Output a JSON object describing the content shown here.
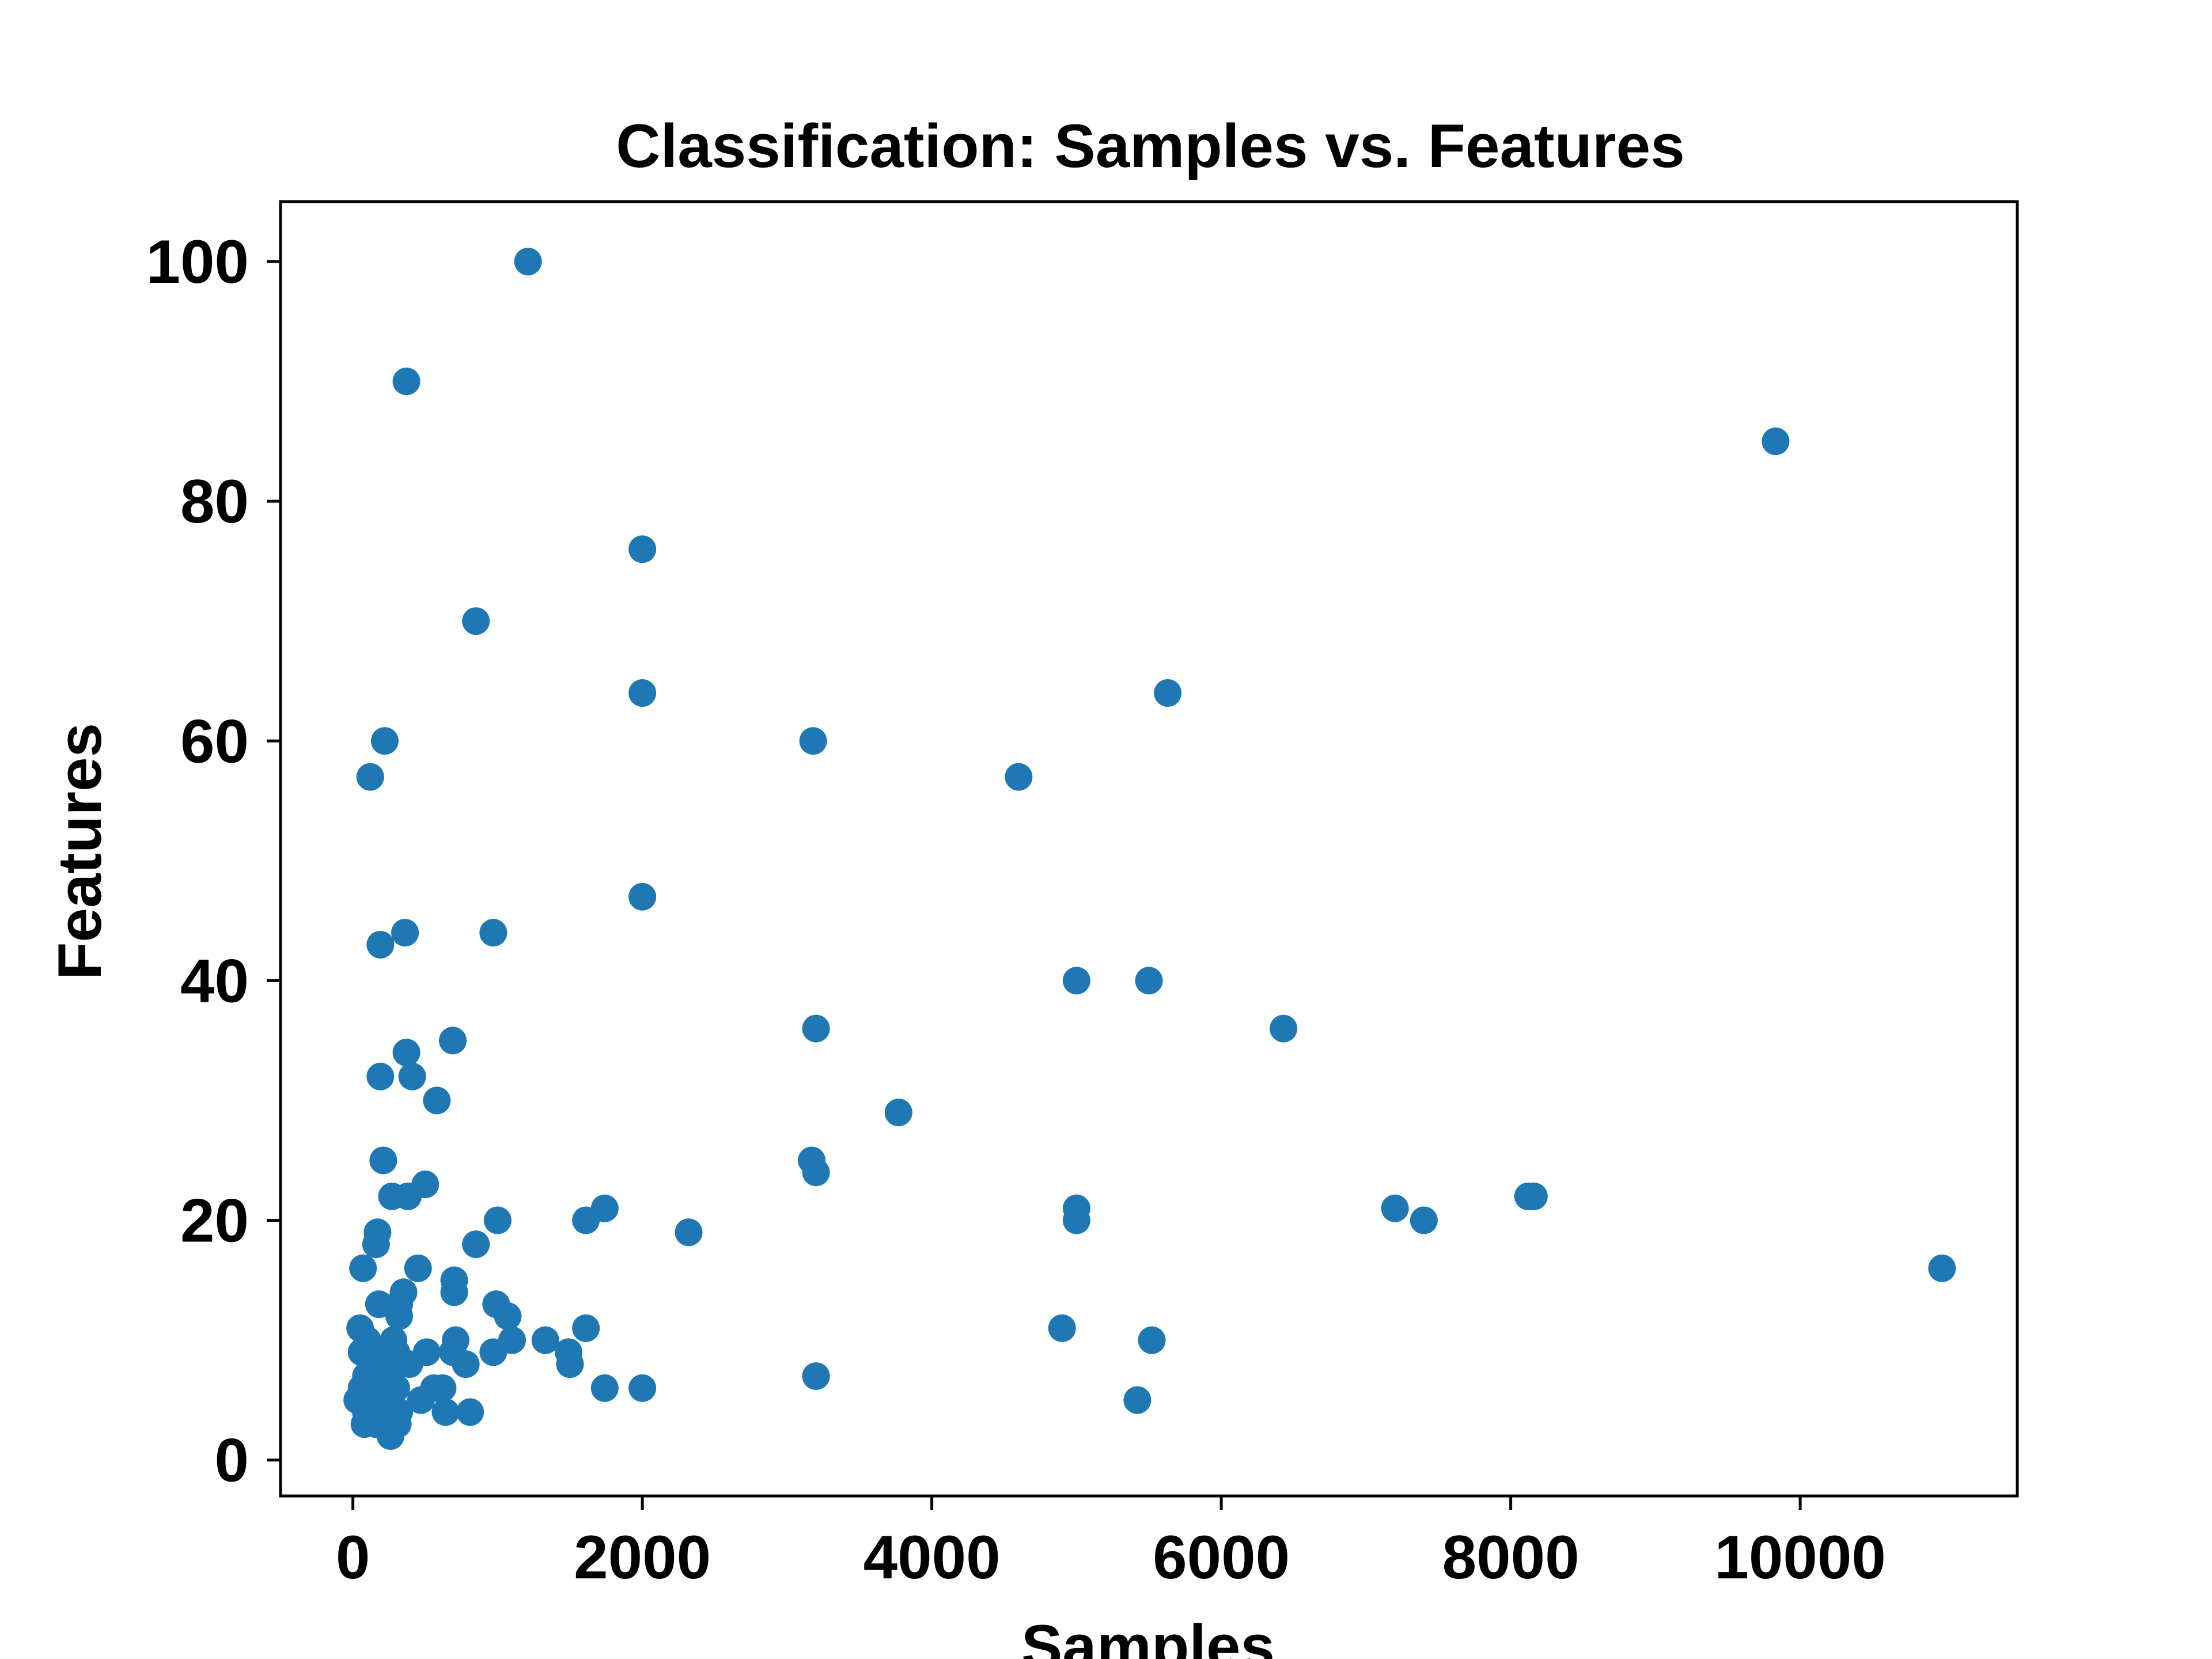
{
  "chart_data": {
    "type": "scatter",
    "title": "Classification: Samples vs. Features",
    "xlabel": "Samples",
    "ylabel": "Features",
    "xlim": [
      -500,
      11500
    ],
    "ylim": [
      -3,
      105
    ],
    "x_ticks": [
      0,
      2000,
      4000,
      6000,
      8000,
      10000
    ],
    "x_tick_labels": [
      "0",
      "2000",
      "4000",
      "6000",
      "8000",
      "10000"
    ],
    "y_ticks": [
      0,
      20,
      40,
      60,
      80,
      100
    ],
    "y_tick_labels": [
      "0",
      "20",
      "40",
      "60",
      "80",
      "100"
    ],
    "grid": false,
    "color": "#1f77b4",
    "points": [
      {
        "x": 1210,
        "y": 100
      },
      {
        "x": 370,
        "y": 90
      },
      {
        "x": 9830,
        "y": 85
      },
      {
        "x": 2000,
        "y": 76
      },
      {
        "x": 850,
        "y": 70
      },
      {
        "x": 2000,
        "y": 64
      },
      {
        "x": 5630,
        "y": 64
      },
      {
        "x": 220,
        "y": 60
      },
      {
        "x": 3180,
        "y": 60
      },
      {
        "x": 120,
        "y": 57
      },
      {
        "x": 4600,
        "y": 57
      },
      {
        "x": 2000,
        "y": 47
      },
      {
        "x": 360,
        "y": 44
      },
      {
        "x": 970,
        "y": 44
      },
      {
        "x": 190,
        "y": 43
      },
      {
        "x": 5000,
        "y": 40
      },
      {
        "x": 5500,
        "y": 40
      },
      {
        "x": 3200,
        "y": 36
      },
      {
        "x": 6430,
        "y": 36
      },
      {
        "x": 690,
        "y": 35
      },
      {
        "x": 370,
        "y": 34
      },
      {
        "x": 190,
        "y": 32
      },
      {
        "x": 410,
        "y": 32
      },
      {
        "x": 580,
        "y": 30
      },
      {
        "x": 3770,
        "y": 29
      },
      {
        "x": 210,
        "y": 25
      },
      {
        "x": 3170,
        "y": 25
      },
      {
        "x": 3200,
        "y": 24
      },
      {
        "x": 500,
        "y": 23
      },
      {
        "x": 270,
        "y": 22
      },
      {
        "x": 380,
        "y": 22
      },
      {
        "x": 8120,
        "y": 22
      },
      {
        "x": 8160,
        "y": 22
      },
      {
        "x": 1740,
        "y": 21
      },
      {
        "x": 5000,
        "y": 21
      },
      {
        "x": 7200,
        "y": 21
      },
      {
        "x": 1000,
        "y": 20
      },
      {
        "x": 1610,
        "y": 20
      },
      {
        "x": 5000,
        "y": 20
      },
      {
        "x": 7400,
        "y": 20
      },
      {
        "x": 170,
        "y": 19
      },
      {
        "x": 2320,
        "y": 19
      },
      {
        "x": 160,
        "y": 18
      },
      {
        "x": 850,
        "y": 18
      },
      {
        "x": 70,
        "y": 16
      },
      {
        "x": 450,
        "y": 16
      },
      {
        "x": 10980,
        "y": 16
      },
      {
        "x": 700,
        "y": 15
      },
      {
        "x": 350,
        "y": 14
      },
      {
        "x": 700,
        "y": 14
      },
      {
        "x": 180,
        "y": 13
      },
      {
        "x": 320,
        "y": 13
      },
      {
        "x": 990,
        "y": 13
      },
      {
        "x": 320,
        "y": 12
      },
      {
        "x": 1070,
        "y": 12
      },
      {
        "x": 50,
        "y": 11
      },
      {
        "x": 1610,
        "y": 11
      },
      {
        "x": 4900,
        "y": 11
      },
      {
        "x": 100,
        "y": 10
      },
      {
        "x": 280,
        "y": 10
      },
      {
        "x": 710,
        "y": 10
      },
      {
        "x": 1100,
        "y": 10
      },
      {
        "x": 1330,
        "y": 10
      },
      {
        "x": 5520,
        "y": 10
      },
      {
        "x": 60,
        "y": 9
      },
      {
        "x": 200,
        "y": 9
      },
      {
        "x": 300,
        "y": 9
      },
      {
        "x": 510,
        "y": 9
      },
      {
        "x": 690,
        "y": 9
      },
      {
        "x": 970,
        "y": 9
      },
      {
        "x": 1490,
        "y": 9
      },
      {
        "x": 120,
        "y": 8
      },
      {
        "x": 260,
        "y": 8
      },
      {
        "x": 390,
        "y": 8
      },
      {
        "x": 780,
        "y": 8
      },
      {
        "x": 1500,
        "y": 8
      },
      {
        "x": 3200,
        "y": 7
      },
      {
        "x": 90,
        "y": 7
      },
      {
        "x": 230,
        "y": 7
      },
      {
        "x": 60,
        "y": 6
      },
      {
        "x": 170,
        "y": 6
      },
      {
        "x": 300,
        "y": 6
      },
      {
        "x": 560,
        "y": 6
      },
      {
        "x": 620,
        "y": 6
      },
      {
        "x": 1740,
        "y": 6
      },
      {
        "x": 2000,
        "y": 6
      },
      {
        "x": 30,
        "y": 5
      },
      {
        "x": 130,
        "y": 5
      },
      {
        "x": 250,
        "y": 5
      },
      {
        "x": 470,
        "y": 5
      },
      {
        "x": 5420,
        "y": 5
      },
      {
        "x": 90,
        "y": 4
      },
      {
        "x": 190,
        "y": 4
      },
      {
        "x": 320,
        "y": 4
      },
      {
        "x": 640,
        "y": 4
      },
      {
        "x": 810,
        "y": 4
      },
      {
        "x": 80,
        "y": 3
      },
      {
        "x": 160,
        "y": 3
      },
      {
        "x": 310,
        "y": 3
      },
      {
        "x": 260,
        "y": 2
      }
    ]
  }
}
